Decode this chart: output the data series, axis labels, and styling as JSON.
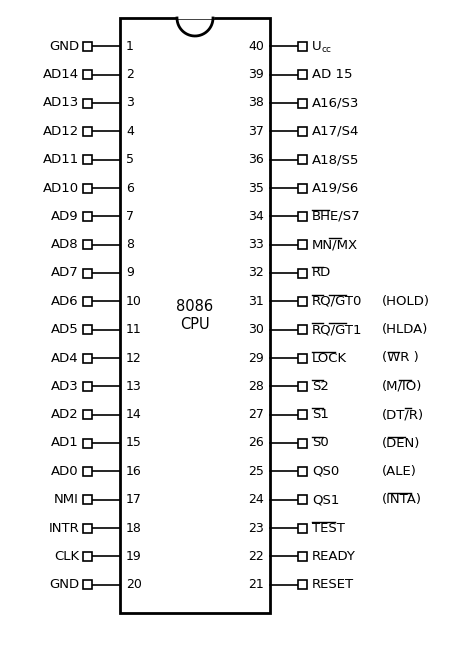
{
  "title": "8086\nCPU",
  "num_pins": 20,
  "left_pins": [
    {
      "num": 1,
      "label": "GND"
    },
    {
      "num": 2,
      "label": "AD14"
    },
    {
      "num": 3,
      "label": "AD13"
    },
    {
      "num": 4,
      "label": "AD12"
    },
    {
      "num": 5,
      "label": "AD11"
    },
    {
      "num": 6,
      "label": "AD10"
    },
    {
      "num": 7,
      "label": "AD9"
    },
    {
      "num": 8,
      "label": "AD8"
    },
    {
      "num": 9,
      "label": "AD7"
    },
    {
      "num": 10,
      "label": "AD6"
    },
    {
      "num": 11,
      "label": "AD5"
    },
    {
      "num": 12,
      "label": "AD4"
    },
    {
      "num": 13,
      "label": "AD3"
    },
    {
      "num": 14,
      "label": "AD2"
    },
    {
      "num": 15,
      "label": "AD1"
    },
    {
      "num": 16,
      "label": "AD0"
    },
    {
      "num": 17,
      "label": "NMI"
    },
    {
      "num": 18,
      "label": "INTR"
    },
    {
      "num": 19,
      "label": "CLK"
    },
    {
      "num": 20,
      "label": "GND"
    }
  ],
  "right_pins": [
    {
      "num": 40,
      "label": "U_cc",
      "bar_chars": [],
      "min_label": ""
    },
    {
      "num": 39,
      "label": "AD15",
      "bar_chars": [],
      "min_label": ""
    },
    {
      "num": 38,
      "label": "A16/S3",
      "bar_chars": [],
      "min_label": ""
    },
    {
      "num": 37,
      "label": "A17/S4",
      "bar_chars": [],
      "min_label": ""
    },
    {
      "num": 36,
      "label": "A18/S5",
      "bar_chars": [],
      "min_label": ""
    },
    {
      "num": 35,
      "label": "A19/S6",
      "bar_chars": [],
      "min_label": ""
    },
    {
      "num": 34,
      "label": "BHE/S7",
      "bar_chars": [
        "BHE"
      ],
      "min_label": ""
    },
    {
      "num": 33,
      "label": "MN/MX",
      "bar_chars": [
        "MX"
      ],
      "min_label": ""
    },
    {
      "num": 32,
      "label": "RD",
      "bar_chars": [
        "RD"
      ],
      "min_label": ""
    },
    {
      "num": 31,
      "label": "RQ/GT0",
      "bar_chars": [
        "RQ",
        "GT0"
      ],
      "min_label": "(HOLD)"
    },
    {
      "num": 30,
      "label": "RQ/GT1",
      "bar_chars": [
        "RQ",
        "GT1"
      ],
      "min_label": "(HLDA)"
    },
    {
      "num": 29,
      "label": "LOCK",
      "bar_chars": [
        "LOCK"
      ],
      "min_label": "(WR )"
    },
    {
      "num": 28,
      "label": "S2",
      "bar_chars": [
        "S2"
      ],
      "min_label": "(M/IO)"
    },
    {
      "num": 27,
      "label": "S1",
      "bar_chars": [
        "S1"
      ],
      "min_label": "(DT/R)"
    },
    {
      "num": 26,
      "label": "S0",
      "bar_chars": [
        "S0"
      ],
      "min_label": "(DEN)"
    },
    {
      "num": 25,
      "label": "QS0",
      "bar_chars": [],
      "min_label": "(ALE)"
    },
    {
      "num": 24,
      "label": "QS1",
      "bar_chars": [],
      "min_label": "(INTA)"
    },
    {
      "num": 23,
      "label": "TEST",
      "bar_chars": [
        "TEST"
      ],
      "min_label": ""
    },
    {
      "num": 22,
      "label": "READY",
      "bar_chars": [],
      "min_label": ""
    },
    {
      "num": 21,
      "label": "RESET",
      "bar_chars": [],
      "min_label": ""
    }
  ],
  "min_bar_chars": {
    "(WR )": [
      "WR"
    ],
    "(M/IO)": [
      "IO"
    ],
    "(DT/R)": [
      "R"
    ],
    "(DEN)": [
      "DEN"
    ],
    "(INTA)": [
      "INTA"
    ]
  },
  "bg_color": "#ffffff",
  "text_color": "#000000",
  "edge_color": "#000000",
  "font_size": 9.5,
  "num_font_size": 9.0
}
